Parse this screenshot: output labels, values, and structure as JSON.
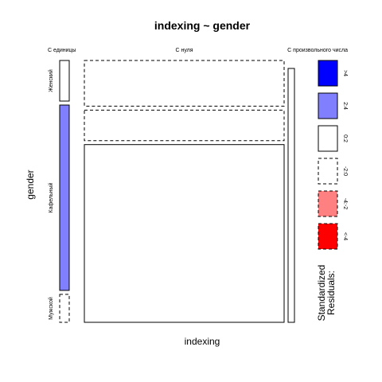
{
  "chart_data": {
    "type": "mosaic",
    "title": "indexing ~ gender",
    "xlabel": "indexing",
    "ylabel": "gender",
    "x_categories": [
      "С единицы",
      "С нуля",
      "С произвольного числа"
    ],
    "y_categories": [
      "Женский",
      "Кафельный",
      "Мужской"
    ],
    "x_marginal": [
      0.03,
      0.94,
      0.03
    ],
    "y_marginal": [
      0.16,
      0.73,
      0.11
    ],
    "y_marginal_residual_class": [
      "0:2",
      "2:4",
      "-2:0"
    ],
    "cells": [
      {
        "x": "С единицы",
        "y": "Женский",
        "share": 0,
        "residual_class": "-2:0"
      },
      {
        "x": "С нуля",
        "y": "Женский",
        "share": 0.18,
        "residual_class": "-2:0"
      },
      {
        "x": "С произвольного числа",
        "y": "Женский",
        "share": 0,
        "residual_class": "-2:0"
      },
      {
        "x": "С единицы",
        "y": "Кафельный",
        "share": 0,
        "residual_class": "-2:0"
      },
      {
        "x": "С нуля",
        "y": "Кафельный",
        "share": 0.12,
        "residual_class": "-2:0"
      },
      {
        "x": "С произвольного числа",
        "y": "Кафельный",
        "share": 0,
        "residual_class": "-2:0"
      },
      {
        "x": "С единицы",
        "y": "Мужской",
        "share": 0,
        "residual_class": "0:2"
      },
      {
        "x": "С нуля",
        "y": "Мужской",
        "share": 0.7,
        "residual_class": "0:2"
      },
      {
        "x": "С произвольного числа",
        "y": "Мужской",
        "share": 1.0,
        "residual_class": "0:2"
      }
    ],
    "legend": {
      "title_lines": [
        "Standardized",
        "Residuals:"
      ],
      "placement": "right",
      "entries": [
        {
          "label": ">4",
          "fill": "#0000ff",
          "dashed": false
        },
        {
          "label": "2:4",
          "fill": "#8080ff",
          "dashed": false
        },
        {
          "label": "0:2",
          "fill": "#ffffff",
          "dashed": false
        },
        {
          "label": "-2:0",
          "fill": "#ffffff",
          "dashed": true
        },
        {
          "label": "-4:-2",
          "fill": "#ff8080",
          "dashed": true
        },
        {
          "label": "<-4",
          "fill": "#ff0000",
          "dashed": true
        }
      ]
    }
  }
}
